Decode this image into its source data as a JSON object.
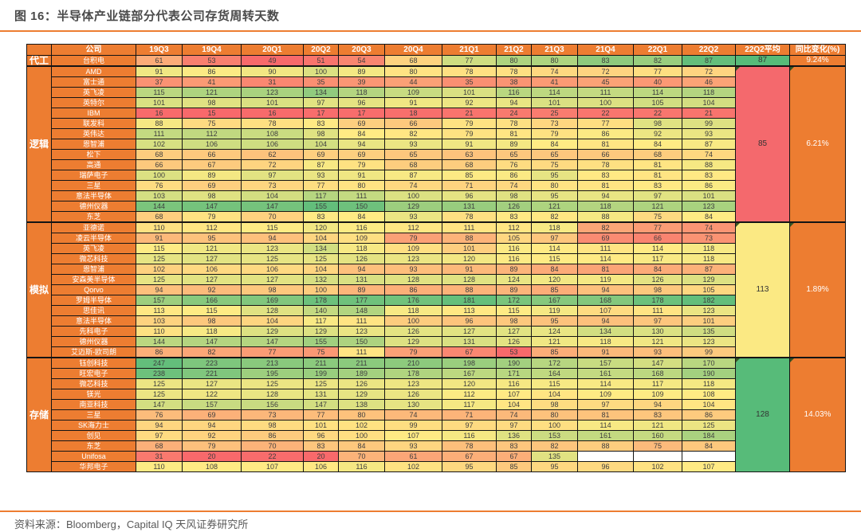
{
  "title": "图 16：半导体产业链部分代表公司存货周转天数",
  "source": "资料来源：Bloomberg，Capital IQ 天风证券研究所",
  "colors": {
    "accent": "#ED7D31",
    "scale_min": "#F8696B",
    "scale_mid": "#FFEB84",
    "scale_max": "#63BE7B",
    "cell_text": "#3F3F3F",
    "blank_cell": "#FFFFFF"
  },
  "chart_data": {
    "type": "heatmap",
    "title": "图 16：半导体产业链部分代表公司存货周转天数",
    "company_header": "公司",
    "columns": [
      "19Q3",
      "19Q4",
      "20Q1",
      "20Q2",
      "20Q3",
      "20Q4",
      "21Q1",
      "21Q2",
      "21Q3",
      "21Q4",
      "22Q1",
      "22Q2"
    ],
    "avg_header": "22Q2平均",
    "yoy_header": "同比变化(%)",
    "groups": [
      {
        "name": "代工",
        "avg": "87",
        "avg_color": "#57BB79",
        "yoy": "9.24%",
        "rows": [
          {
            "company": "台积电",
            "values": [
              61,
              53,
              49,
              51,
              54,
              68,
              77,
              80,
              80,
              83,
              82,
              87
            ]
          }
        ]
      },
      {
        "name": "逻辑",
        "avg": "85",
        "avg_color": "#F4696D",
        "yoy": "6.21%",
        "rows": [
          {
            "company": "AMD",
            "values": [
              91,
              86,
              90,
              100,
              89,
              80,
              78,
              78,
              74,
              72,
              77,
              72
            ]
          },
          {
            "company": "富士通",
            "values": [
              37,
              41,
              31,
              35,
              39,
              44,
              35,
              38,
              41,
              45,
              40,
              46
            ]
          },
          {
            "company": "英飞凌",
            "values": [
              115,
              121,
              123,
              134,
              118,
              109,
              101,
              116,
              114,
              111,
              114,
              118
            ]
          },
          {
            "company": "英特尔",
            "values": [
              101,
              98,
              101,
              97,
              96,
              91,
              92,
              94,
              101,
              100,
              105,
              104
            ]
          },
          {
            "company": "IBM",
            "values": [
              16,
              15,
              16,
              17,
              17,
              18,
              21,
              24,
              25,
              22,
              22,
              21
            ]
          },
          {
            "company": "联发科",
            "values": [
              88,
              75,
              78,
              83,
              69,
              66,
              79,
              78,
              73,
              77,
              98,
              99
            ]
          },
          {
            "company": "英伟达",
            "values": [
              111,
              112,
              108,
              98,
              84,
              82,
              79,
              81,
              79,
              86,
              92,
              93
            ]
          },
          {
            "company": "恩智浦",
            "values": [
              102,
              106,
              106,
              104,
              94,
              93,
              91,
              89,
              84,
              81,
              84,
              87
            ]
          },
          {
            "company": "松下",
            "values": [
              68,
              66,
              62,
              69,
              69,
              65,
              63,
              65,
              65,
              66,
              68,
              74
            ]
          },
          {
            "company": "高通",
            "values": [
              66,
              67,
              72,
              87,
              79,
              68,
              68,
              76,
              75,
              78,
              81,
              88
            ]
          },
          {
            "company": "瑞萨电子",
            "values": [
              100,
              89,
              97,
              93,
              91,
              87,
              85,
              86,
              95,
              83,
              81,
              83
            ]
          },
          {
            "company": "三星",
            "values": [
              76,
              69,
              73,
              77,
              80,
              74,
              71,
              74,
              80,
              81,
              83,
              86
            ]
          },
          {
            "company": "意法半导体",
            "values": [
              103,
              98,
              104,
              117,
              111,
              100,
              96,
              98,
              95,
              94,
              97,
              101
            ]
          },
          {
            "company": "德州仪器",
            "values": [
              144,
              147,
              147,
              155,
              150,
              129,
              131,
              126,
              121,
              118,
              121,
              123
            ]
          },
          {
            "company": "东芝",
            "values": [
              68,
              79,
              70,
              83,
              84,
              93,
              78,
              83,
              82,
              88,
              75,
              84
            ]
          }
        ]
      },
      {
        "name": "模拟",
        "avg": "113",
        "avg_color": "#FBE983",
        "yoy": "1.89%",
        "rows": [
          {
            "company": "亚德诺",
            "values": [
              110,
              112,
              115,
              120,
              116,
              112,
              111,
              112,
              118,
              82,
              77,
              74
            ]
          },
          {
            "company": "凌云半导体",
            "values": [
              91,
              95,
              94,
              104,
              109,
              79,
              88,
              105,
              97,
              69,
              66,
              73
            ]
          },
          {
            "company": "英飞凌",
            "values": [
              115,
              121,
              123,
              134,
              118,
              109,
              101,
              116,
              114,
              111,
              114,
              118
            ]
          },
          {
            "company": "微芯科技",
            "values": [
              125,
              127,
              125,
              125,
              126,
              123,
              120,
              116,
              115,
              114,
              117,
              118
            ]
          },
          {
            "company": "恩智浦",
            "values": [
              102,
              106,
              106,
              104,
              94,
              93,
              91,
              89,
              84,
              81,
              84,
              87
            ]
          },
          {
            "company": "安森美半导体",
            "values": [
              125,
              127,
              127,
              132,
              131,
              128,
              128,
              124,
              120,
              119,
              126,
              129
            ]
          },
          {
            "company": "Qorvo",
            "values": [
              94,
              92,
              98,
              100,
              89,
              86,
              88,
              89,
              85,
              94,
              98,
              105
            ]
          },
          {
            "company": "罗姆半导体",
            "values": [
              157,
              166,
              169,
              178,
              177,
              176,
              181,
              172,
              167,
              168,
              178,
              182
            ]
          },
          {
            "company": "思佳讯",
            "values": [
              113,
              115,
              128,
              140,
              148,
              118,
              113,
              115,
              119,
              107,
              111,
              123
            ]
          },
          {
            "company": "意法半导体",
            "values": [
              103,
              98,
              104,
              117,
              111,
              100,
              96,
              98,
              95,
              94,
              97,
              101
            ]
          },
          {
            "company": "先科电子",
            "values": [
              110,
              118,
              129,
              129,
              123,
              126,
              127,
              127,
              124,
              134,
              130,
              135
            ]
          },
          {
            "company": "德州仪器",
            "values": [
              144,
              147,
              147,
              155,
              150,
              129,
              131,
              126,
              121,
              118,
              121,
              123
            ]
          },
          {
            "company": "艾迈斯-欧司朗",
            "values": [
              86,
              82,
              77,
              75,
              111,
              79,
              67,
              53,
              85,
              91,
              93,
              99
            ]
          }
        ]
      },
      {
        "name": "存储",
        "avg": "128",
        "avg_color": "#57BB79",
        "yoy": "14.03%",
        "rows": [
          {
            "company": "钰创科技",
            "values": [
              247,
              223,
              213,
              211,
              211,
              210,
              198,
              190,
              172,
              157,
              147,
              170
            ]
          },
          {
            "company": "旺宏电子",
            "values": [
              238,
              221,
              195,
              199,
              189,
              178,
              167,
              171,
              164,
              161,
              168,
              190
            ]
          },
          {
            "company": "微芯科技",
            "values": [
              125,
              127,
              125,
              125,
              126,
              123,
              120,
              116,
              115,
              114,
              117,
              118
            ]
          },
          {
            "company": "镁光",
            "values": [
              125,
              122,
              128,
              131,
              129,
              126,
              112,
              107,
              104,
              109,
              109,
              108
            ]
          },
          {
            "company": "南亚科技",
            "values": [
              147,
              157,
              156,
              147,
              138,
              130,
              117,
              104,
              98,
              97,
              94,
              104
            ]
          },
          {
            "company": "三星",
            "values": [
              76,
              69,
              73,
              77,
              80,
              74,
              71,
              74,
              80,
              81,
              83,
              86
            ]
          },
          {
            "company": "SK海力士",
            "values": [
              94,
              94,
              98,
              101,
              102,
              99,
              97,
              97,
              100,
              114,
              121,
              125
            ]
          },
          {
            "company": "创见",
            "values": [
              97,
              92,
              86,
              96,
              100,
              107,
              116,
              136,
              153,
              161,
              160,
              184
            ]
          },
          {
            "company": "东芝",
            "values": [
              68,
              79,
              70,
              83,
              84,
              93,
              78,
              83,
              82,
              88,
              75,
              84
            ]
          },
          {
            "company": "Unifosa",
            "values": [
              31,
              20,
              22,
              20,
              70,
              61,
              67,
              67,
              135,
              null,
              null,
              null
            ]
          },
          {
            "company": "华邦电子",
            "values": [
              110,
              108,
              107,
              106,
              116,
              102,
              95,
              85,
              95,
              96,
              102,
              107
            ]
          }
        ]
      }
    ]
  }
}
